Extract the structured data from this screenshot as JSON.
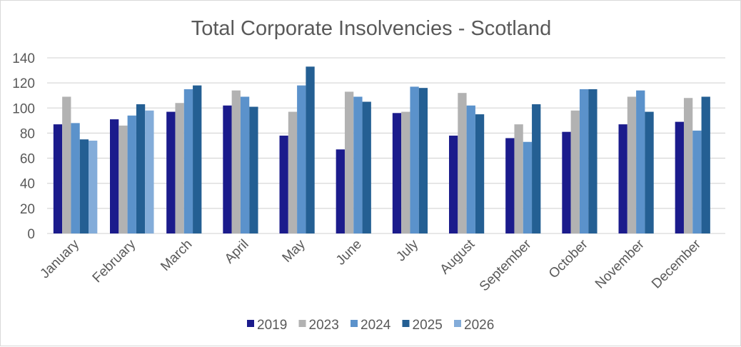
{
  "chart_data": {
    "type": "bar",
    "title": "Total Corporate Insolvencies - Scotland",
    "xlabel": "",
    "ylabel": "",
    "ylim": [
      0,
      140
    ],
    "yticks": [
      0,
      20,
      40,
      60,
      80,
      100,
      120,
      140
    ],
    "grid": true,
    "legend_position": "bottom",
    "categories": [
      "January",
      "February",
      "March",
      "April",
      "May",
      "June",
      "July",
      "August",
      "September",
      "October",
      "November",
      "December"
    ],
    "series": [
      {
        "name": "2019",
        "color": "#1b1b8c",
        "values": [
          87,
          91,
          97,
          102,
          78,
          67,
          96,
          78,
          76,
          81,
          87,
          89
        ]
      },
      {
        "name": "2023",
        "color": "#b2b2b2",
        "values": [
          109,
          86,
          104,
          114,
          97,
          113,
          97,
          112,
          87,
          98,
          109,
          108
        ]
      },
      {
        "name": "2024",
        "color": "#5b92cb",
        "values": [
          88,
          94,
          115,
          109,
          118,
          109,
          117,
          102,
          73,
          115,
          114,
          82
        ]
      },
      {
        "name": "2025",
        "color": "#245f93",
        "values": [
          75,
          103,
          118,
          101,
          133,
          105,
          116,
          95,
          103,
          115,
          97,
          109
        ]
      },
      {
        "name": "2026",
        "color": "#83acd9",
        "values": [
          74,
          98,
          null,
          null,
          null,
          null,
          null,
          null,
          null,
          null,
          null,
          null
        ]
      }
    ]
  }
}
